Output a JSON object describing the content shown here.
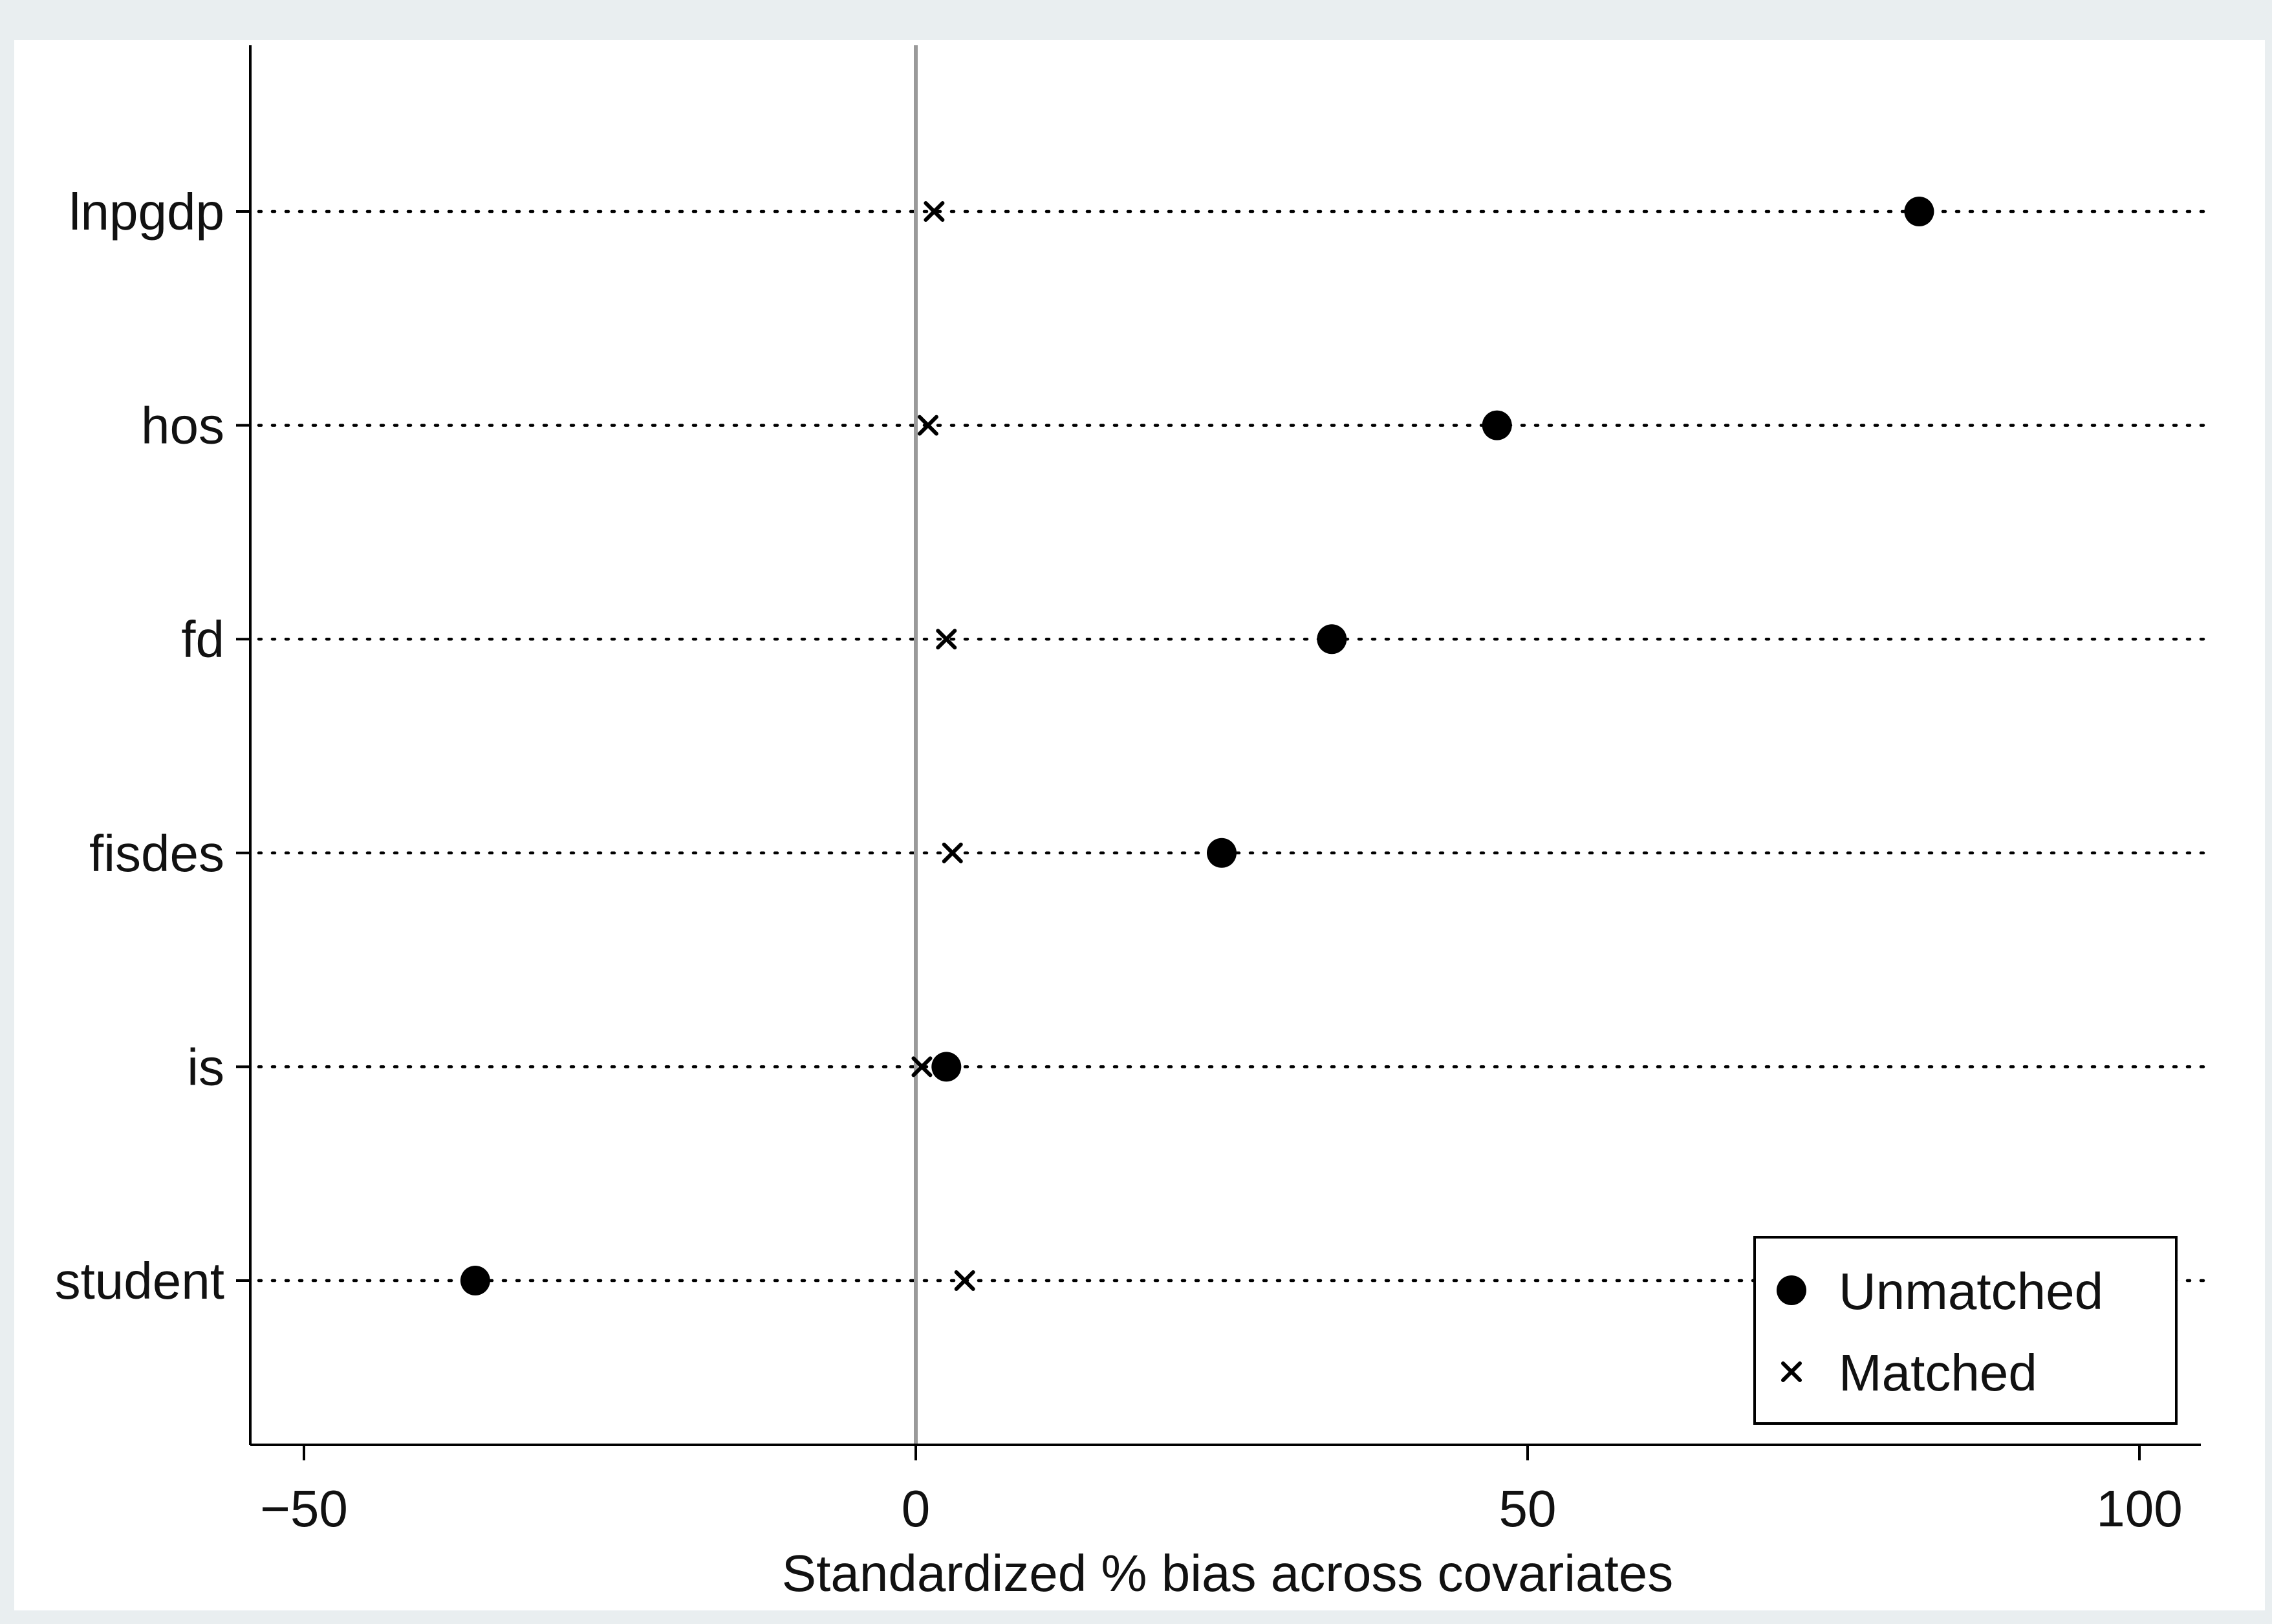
{
  "colors": {
    "outer_background": "#e9eef0",
    "plot_background": "#ffffff",
    "zero_line": "#9a9a9a",
    "marks": "#000000"
  },
  "chart_data": {
    "type": "scatter",
    "subtype": "dot plot",
    "title": "",
    "xlabel": "Standardized % bias across covariates",
    "ylabel": "",
    "xlim": [
      -55,
      105
    ],
    "xticks": [
      -50,
      0,
      50,
      100
    ],
    "xtick_labels": [
      "−50",
      "0",
      "50",
      "100"
    ],
    "categories": [
      "lnpgdp",
      "hos",
      "fd",
      "fisdes",
      "is",
      "student"
    ],
    "reference_line_x": 0,
    "grid": "dotted horizontal lines at each category",
    "legend_position": "bottom-right",
    "series": [
      {
        "name": "Unmatched",
        "marker": "filled-circle",
        "values": [
          82,
          47.5,
          34,
          25,
          2.5,
          -36
        ]
      },
      {
        "name": "Matched",
        "marker": "x-cross",
        "values": [
          1.5,
          1,
          2.5,
          3,
          0.5,
          4
        ]
      }
    ]
  }
}
